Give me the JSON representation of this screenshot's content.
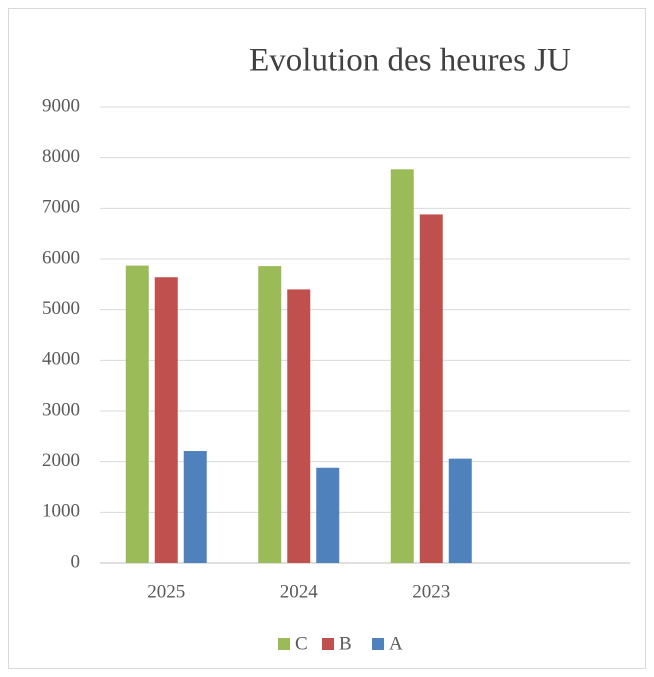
{
  "chart_data": {
    "type": "bar",
    "title": "Evolution des heures JU",
    "categories": [
      "2025",
      "2024",
      "2023",
      null
    ],
    "series": [
      {
        "name": "C",
        "color": "#9bbb59",
        "values": [
          5870,
          5860,
          7770,
          null
        ]
      },
      {
        "name": "B",
        "color": "#c0504d",
        "values": [
          5640,
          5400,
          6880,
          null
        ]
      },
      {
        "name": "A",
        "color": "#4f81bd",
        "values": [
          2210,
          1880,
          2060,
          null
        ]
      }
    ],
    "ylim": [
      0,
      9000
    ],
    "yticks": [
      0,
      1000,
      2000,
      3000,
      4000,
      5000,
      6000,
      7000,
      8000,
      9000
    ],
    "grid": true,
    "legend": "bottom"
  }
}
